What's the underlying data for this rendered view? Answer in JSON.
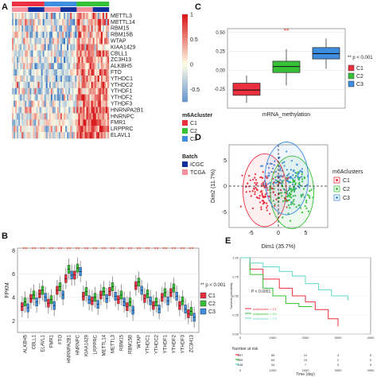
{
  "panels": {
    "A": "A",
    "B": "B",
    "C": "C",
    "D": "D",
    "E": "E"
  },
  "colors": {
    "C1": "#ec2f3f",
    "C2": "#36c136",
    "C3": "#3d8de0",
    "ICGC": "#0f2f9c",
    "TCGA": "#f5909c",
    "heat_low": "#3b78c6",
    "heat_mid": "#fffde6",
    "heat_high": "#d7191c",
    "sig": "#e8443a"
  },
  "chart_data": [
    {
      "id": "A",
      "type": "heatmap",
      "genes": [
        "METTL3",
        "METTL14",
        "RBM15",
        "RBM15B",
        "WTAP",
        "KIAA1429",
        "CBLL1",
        "ZC3H13",
        "ALKBH5",
        "FTO",
        "YTHDC1",
        "YTHDC2",
        "YTHDF1",
        "YTHDF2",
        "YTHDF3",
        "HNRNPA2B1",
        "HNRNPC",
        "FMR1",
        "LRPPRC",
        "ELAVL1"
      ],
      "colorbar_ticks": [
        "1",
        "0.5",
        "0",
        "-0.5"
      ],
      "legend_title": "m6Acluster",
      "clusters": [
        "C1",
        "C2",
        "C3"
      ],
      "batch_title": "Batch",
      "batches": [
        "ICGC",
        "TCGA"
      ]
    },
    {
      "id": "B",
      "type": "box",
      "categories": [
        "ALKBH5",
        "CBLL1",
        "ELAVL1",
        "FMR1",
        "FTO",
        "HNRNPA2B1",
        "HNRNPC",
        "KIAA1429",
        "LRPPRC",
        "METTL14",
        "METTL3",
        "RBM15",
        "RBM15B",
        "WTAP",
        "YTHDC1",
        "YTHDC2",
        "YTHDF1",
        "YTHDF2",
        "YTHDF3",
        "ZC3H13"
      ],
      "series_names": [
        "C1",
        "C2",
        "C3"
      ],
      "medians": {
        "C1": [
          3.2,
          3.9,
          4.3,
          3.5,
          4.6,
          5.6,
          5.9,
          4.1,
          3.7,
          4.2,
          4.5,
          3.8,
          3.2,
          5.0,
          3.9,
          3.3,
          4.0,
          4.4,
          3.3,
          2.6
        ],
        "C2": [
          3.6,
          4.2,
          4.6,
          3.8,
          4.9,
          6.4,
          6.5,
          4.5,
          4.0,
          4.5,
          4.9,
          4.2,
          3.6,
          5.3,
          4.3,
          3.6,
          4.4,
          4.8,
          3.7,
          2.8
        ],
        "C3": [
          3.1,
          3.6,
          4.0,
          3.3,
          4.2,
          5.9,
          6.2,
          3.8,
          3.4,
          3.9,
          4.1,
          3.6,
          2.9,
          4.6,
          3.7,
          3.0,
          3.7,
          4.1,
          3.0,
          2.3
        ]
      },
      "ylabel": "FPKM",
      "yticks": [
        "2",
        "4",
        "6",
        "8"
      ],
      "ylim": [
        1,
        8.2
      ],
      "sig_marks": "**",
      "legend_note": "** p < 0.001"
    },
    {
      "id": "C",
      "type": "box",
      "categories": [
        "C1",
        "C2",
        "C3"
      ],
      "boxes": [
        {
          "name": "C1",
          "q1": -0.33,
          "median": -0.26,
          "q3": -0.17,
          "low": -0.43,
          "high": -0.07
        },
        {
          "name": "C2",
          "q1": -0.03,
          "median": 0.05,
          "q3": 0.12,
          "low": -0.2,
          "high": 0.28
        },
        {
          "name": "C3",
          "q1": 0.15,
          "median": 0.22,
          "q3": 0.3,
          "low": 0.02,
          "high": 0.42
        }
      ],
      "xlabel": "mRNA_methylation",
      "yticks": [
        "0.50",
        "0.25",
        "0.00",
        "-0.25"
      ],
      "ylim": [
        -0.5,
        0.55
      ],
      "sig_mark": "**",
      "legend_note": "** p < 0.001"
    },
    {
      "id": "D",
      "type": "scatter",
      "xlabel": "Dim1 (35.7%)",
      "ylabel": "Dim2 (11.7%)",
      "xticks": [
        "-5",
        "0",
        "5"
      ],
      "yticks": [
        "5",
        "0",
        "-5"
      ],
      "xlim": [
        -9,
        9
      ],
      "ylim": [
        -8,
        8
      ],
      "legend_title": "m6Aclusters",
      "series_names": [
        "C1",
        "C2",
        "C3"
      ],
      "centroids": [
        [
          -2.5,
          -0.8
        ],
        [
          2.5,
          -1.2
        ],
        [
          1.5,
          1.5
        ]
      ]
    },
    {
      "id": "E",
      "type": "line",
      "ylabel": "Survival probability",
      "xlabel": "Time (day)",
      "xticks": [
        "0",
        "1000",
        "2000",
        "3000",
        "4000"
      ],
      "yticks": [
        "1.00",
        "0.75",
        "0.50",
        "0.25",
        "0.00"
      ],
      "xlim": [
        0,
        4000
      ],
      "ylim": [
        0,
        1
      ],
      "pvalue": "P < 0.0001",
      "series": [
        {
          "name": "m6Acluster = C1",
          "points": [
            [
              0,
              1
            ],
            [
              300,
              0.85
            ],
            [
              700,
              0.72
            ],
            [
              1200,
              0.6
            ],
            [
              1600,
              0.5
            ],
            [
              2000,
              0.42
            ],
            [
              2300,
              0.32
            ],
            [
              2700,
              0.2
            ],
            [
              3000,
              0.1
            ]
          ]
        },
        {
          "name": "m6Acluster = C2",
          "points": [
            [
              0,
              1
            ],
            [
              300,
              0.78
            ],
            [
              700,
              0.6
            ],
            [
              1000,
              0.5
            ],
            [
              1400,
              0.4
            ],
            [
              1800,
              0.36
            ],
            [
              2200,
              0.35
            ]
          ]
        },
        {
          "name": "m6Acluster = C3",
          "points": [
            [
              0,
              1
            ],
            [
              300,
              0.93
            ],
            [
              700,
              0.88
            ],
            [
              1200,
              0.82
            ],
            [
              1600,
              0.76
            ],
            [
              2000,
              0.66
            ],
            [
              2400,
              0.58
            ],
            [
              2800,
              0.5
            ],
            [
              3300,
              0.44
            ]
          ]
        }
      ],
      "risk_title": "Number at risk",
      "risk_table": [
        [
          "187",
          "55",
          "12",
          "4",
          "0"
        ],
        [
          "259",
          "84",
          "19",
          "2",
          "0"
        ],
        [
          "148",
          "34",
          "7",
          "3",
          "0"
        ]
      ]
    }
  ]
}
